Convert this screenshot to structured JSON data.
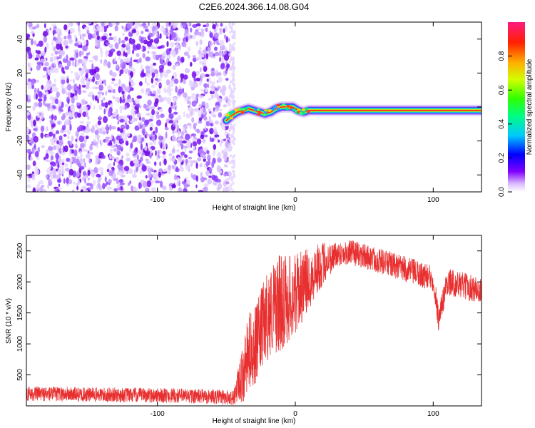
{
  "title": "C2E6.2024.366.14.08.G04",
  "chart_data": [
    {
      "type": "heatmap",
      "title": "C2E6.2024.366.14.08.G04",
      "xlabel": "Height of straight line (km)",
      "ylabel": "Frequency (Hz)",
      "xlim": [
        -195,
        135
      ],
      "ylim": [
        -50,
        50
      ],
      "x_ticks": [
        -100,
        0,
        100
      ],
      "x_tick_labels": [
        "-100",
        "0",
        "100"
      ],
      "y_ticks": [
        -40,
        -20,
        0,
        20,
        40
      ],
      "y_tick_labels": [
        "-40",
        "-20",
        "0",
        "20",
        "40"
      ],
      "noise_region_x": [
        -195,
        -48
      ],
      "signal_track": [
        {
          "x": -50,
          "y": -8
        },
        {
          "x": -46,
          "y": -5
        },
        {
          "x": -42,
          "y": -3
        },
        {
          "x": -38,
          "y": -2
        },
        {
          "x": -34,
          "y": -1
        },
        {
          "x": -30,
          "y": -2
        },
        {
          "x": -26,
          "y": -3
        },
        {
          "x": -22,
          "y": -4
        },
        {
          "x": -18,
          "y": -3
        },
        {
          "x": -14,
          "y": -1
        },
        {
          "x": -10,
          "y": 0
        },
        {
          "x": -6,
          "y": 0
        },
        {
          "x": -2,
          "y": 0
        },
        {
          "x": 2,
          "y": -2
        },
        {
          "x": 6,
          "y": -3
        },
        {
          "x": 10,
          "y": -2
        },
        {
          "x": 20,
          "y": -2
        },
        {
          "x": 40,
          "y": -2
        },
        {
          "x": 60,
          "y": -2
        },
        {
          "x": 80,
          "y": -2
        },
        {
          "x": 100,
          "y": -2
        },
        {
          "x": 120,
          "y": -2
        },
        {
          "x": 135,
          "y": -2
        }
      ],
      "colorbar": {
        "label": "Normalized spectral amplitude",
        "range": [
          0,
          1
        ],
        "ticks": [
          0.0,
          0.2,
          0.4,
          0.6,
          0.8
        ],
        "tick_labels": [
          "0.0",
          "0.2",
          "0.4",
          "0.6",
          "0.8"
        ]
      },
      "grid": false
    },
    {
      "type": "line",
      "xlabel": "Height of straight line (km)",
      "ylabel": "SNR (10 * v/v)",
      "xlim": [
        -195,
        135
      ],
      "ylim": [
        0,
        2750
      ],
      "x_ticks": [
        -100,
        0,
        100
      ],
      "x_tick_labels": [
        "-100",
        "0",
        "100"
      ],
      "y_ticks": [
        500,
        1000,
        1500,
        2000,
        2500
      ],
      "y_tick_labels": [
        "500",
        "1000",
        "1500",
        "2000",
        "2500"
      ],
      "series": [
        {
          "color": "#e83030",
          "points": [
            {
              "x": -195,
              "y": 200
            },
            {
              "x": -150,
              "y": 180
            },
            {
              "x": -100,
              "y": 170
            },
            {
              "x": -60,
              "y": 150
            },
            {
              "x": -45,
              "y": 130
            },
            {
              "x": -38,
              "y": 500
            },
            {
              "x": -33,
              "y": 900
            },
            {
              "x": -28,
              "y": 1000
            },
            {
              "x": -22,
              "y": 1400
            },
            {
              "x": -15,
              "y": 1600
            },
            {
              "x": -8,
              "y": 1700
            },
            {
              "x": 0,
              "y": 1800
            },
            {
              "x": 10,
              "y": 2050
            },
            {
              "x": 20,
              "y": 2300
            },
            {
              "x": 30,
              "y": 2450
            },
            {
              "x": 40,
              "y": 2480
            },
            {
              "x": 60,
              "y": 2350
            },
            {
              "x": 80,
              "y": 2200
            },
            {
              "x": 100,
              "y": 2050
            },
            {
              "x": 104,
              "y": 1400
            },
            {
              "x": 110,
              "y": 2000
            },
            {
              "x": 120,
              "y": 1950
            },
            {
              "x": 135,
              "y": 1850
            }
          ],
          "noise_amplitude": [
            {
              "x": -195,
              "y": 120
            },
            {
              "x": -45,
              "y": 120
            },
            {
              "x": -35,
              "y": 600
            },
            {
              "x": -10,
              "y": 800
            },
            {
              "x": 10,
              "y": 500
            },
            {
              "x": 30,
              "y": 200
            },
            {
              "x": 135,
              "y": 220
            }
          ]
        }
      ],
      "grid": false
    }
  ]
}
